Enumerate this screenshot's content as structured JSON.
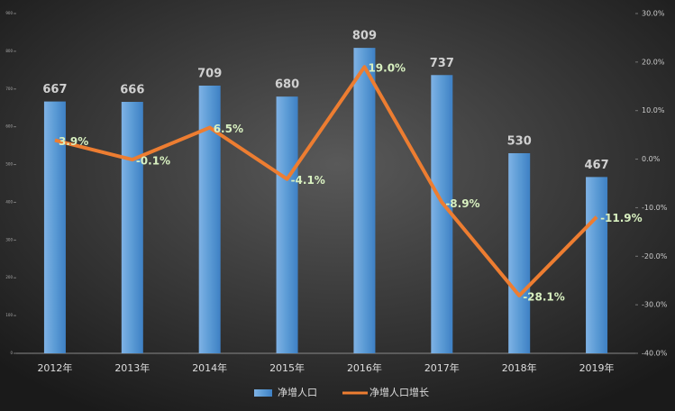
{
  "chart_data": {
    "type": "bar",
    "categories": [
      "2012年",
      "2013年",
      "2014年",
      "2015年",
      "2016年",
      "2017年",
      "2018年",
      "2019年"
    ],
    "series": [
      {
        "name": "净增人口",
        "type": "bar",
        "color": "#5b9bd5",
        "values": [
          667,
          666,
          709,
          680,
          809,
          737,
          530,
          467
        ]
      },
      {
        "name": "净增人口增长",
        "type": "line",
        "axis": "y2",
        "color": "#ed7d31",
        "values": [
          3.9,
          -0.1,
          6.5,
          -4.1,
          19.0,
          -8.9,
          -28.1,
          -11.9
        ],
        "value_labels": [
          "3.9%",
          "-0.1%",
          "6.5%",
          "-4.1%",
          "19.0%",
          "-8.9%",
          "-28.1%",
          "-11.9%"
        ]
      }
    ],
    "ylim": [
      0,
      900
    ],
    "yticks": [
      0,
      100,
      200,
      300,
      400,
      500,
      600,
      700,
      800,
      900
    ],
    "y2lim": [
      -40,
      30
    ],
    "y2ticks": [
      {
        "value": -40,
        "label": "-40.0%"
      },
      {
        "value": -30,
        "label": "-30.0%"
      },
      {
        "value": -20,
        "label": "-20.0%"
      },
      {
        "value": -10,
        "label": "-10.0%"
      },
      {
        "value": 0,
        "label": "0.0%"
      },
      {
        "value": 10,
        "label": "10.0%"
      },
      {
        "value": 20,
        "label": "20.0%"
      },
      {
        "value": 30,
        "label": "30.0%"
      }
    ],
    "legend": "bottom"
  }
}
